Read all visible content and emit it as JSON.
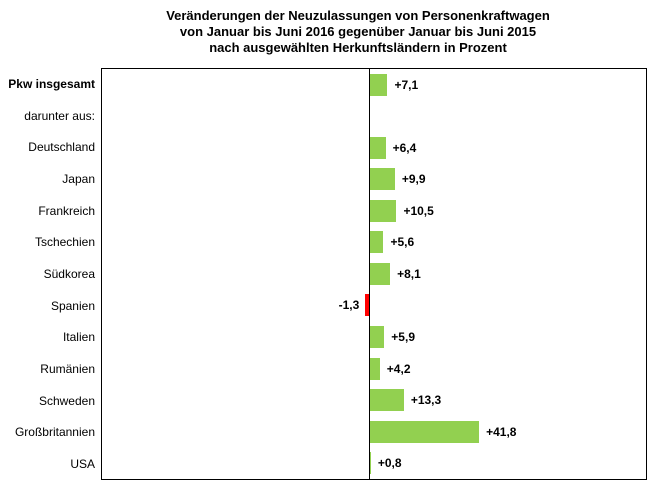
{
  "chart_title": {
    "line1": "Veränderungen der Neuzulassungen von Personenkraftwagen",
    "line2": "von Januar bis Juni 2016 gegenüber Januar bis Juni 2015",
    "line3": "nach ausgewählten Herkunftsländern in Prozent"
  },
  "colors": {
    "positive_bar": "#92D050",
    "negative_bar": "#FF0000",
    "axis_line": "#000000",
    "plot_border": "#000000",
    "text": "#000000"
  },
  "chart_data": {
    "type": "bar",
    "orientation": "horizontal",
    "title": "Veränderungen der Neuzulassungen von Personenkraftwagen von Januar bis Juni 2016 gegenüber Januar bis Juni 2015 nach ausgewählten Herkunftsländern in Prozent",
    "unit": "Prozent",
    "xlim": [
      -101,
      105
    ],
    "grid": false,
    "legend": false,
    "rows": [
      {
        "category": "Pkw insgesamt",
        "value": 7.1,
        "label": "+7,1",
        "bold": true
      },
      {
        "category": "darunter aus:",
        "value": null,
        "label": "",
        "bold": false
      },
      {
        "category": "Deutschland",
        "value": 6.4,
        "label": "+6,4",
        "bold": false
      },
      {
        "category": "Japan",
        "value": 9.9,
        "label": "+9,9",
        "bold": false
      },
      {
        "category": "Frankreich",
        "value": 10.5,
        "label": "+10,5",
        "bold": false
      },
      {
        "category": "Tschechien",
        "value": 5.6,
        "label": "+5,6",
        "bold": false
      },
      {
        "category": "Südkorea",
        "value": 8.1,
        "label": "+8,1",
        "bold": false
      },
      {
        "category": "Spanien",
        "value": -1.3,
        "label": "-1,3",
        "bold": false
      },
      {
        "category": "Italien",
        "value": 5.9,
        "label": "+5,9",
        "bold": false
      },
      {
        "category": "Rumänien",
        "value": 4.2,
        "label": "+4,2",
        "bold": false
      },
      {
        "category": "Schweden",
        "value": 13.3,
        "label": "+13,3",
        "bold": false
      },
      {
        "category": "Großbritannien",
        "value": 41.8,
        "label": "+41,8",
        "bold": false
      },
      {
        "category": "USA",
        "value": 0.8,
        "label": "+0,8",
        "bold": false
      }
    ]
  }
}
